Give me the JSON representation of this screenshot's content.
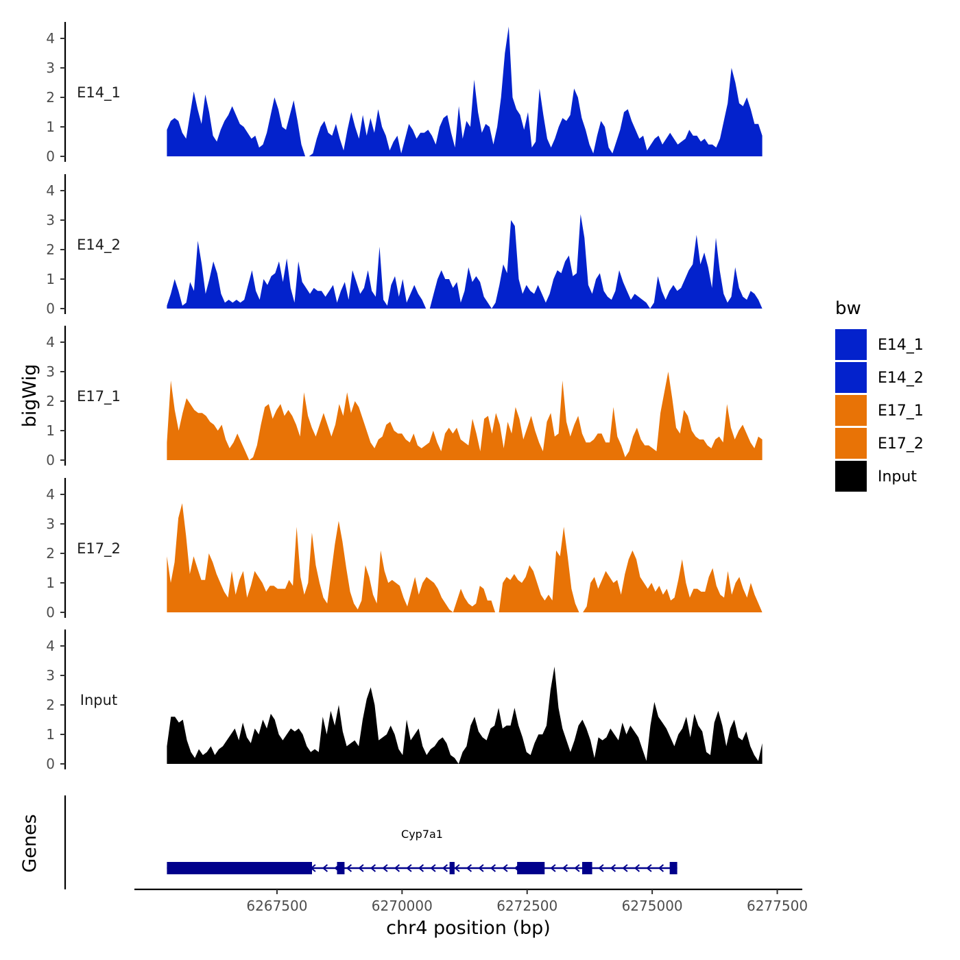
{
  "chart_data": {
    "type": "area",
    "ylabel": "bigWig",
    "xlabel": "chr4 position (bp)",
    "xlim": [
      6264650,
      6278000
    ],
    "ylim": [
      0,
      4.5
    ],
    "y_ticks": [
      "0",
      "1",
      "2",
      "3",
      "4"
    ],
    "x_ticks": [
      "6267500",
      "6270000",
      "6272500",
      "6275000",
      "6277500"
    ],
    "genes_label": "Genes",
    "legend": {
      "title": "bw",
      "entries": [
        {
          "label": "E14_1",
          "color": "#0322CC"
        },
        {
          "label": "E14_2",
          "color": "#0322CC"
        },
        {
          "label": "E17_1",
          "color": "#E87306"
        },
        {
          "label": "E17_2",
          "color": "#E87306"
        },
        {
          "label": "Input",
          "color": "#000000"
        }
      ]
    },
    "series": [
      {
        "name": "E14_1",
        "color": "#0322CC",
        "x_start": 6265300,
        "x_end": 6277200,
        "values": [
          0.9,
          1.2,
          1.3,
          1.2,
          0.8,
          0.6,
          1.4,
          2.2,
          1.6,
          1.1,
          2.1,
          1.5,
          0.7,
          0.5,
          0.9,
          1.2,
          1.4,
          1.7,
          1.4,
          1.1,
          1.0,
          0.8,
          0.6,
          0.7,
          0.3,
          0.4,
          0.8,
          1.4,
          2.0,
          1.6,
          1.0,
          0.9,
          1.4,
          1.9,
          1.2,
          0.4,
          0.0,
          0.0,
          0.1,
          0.6,
          1.0,
          1.2,
          0.8,
          0.7,
          1.1,
          0.6,
          0.2,
          0.9,
          1.5,
          1.0,
          0.6,
          1.4,
          0.7,
          1.3,
          0.8,
          1.6,
          1.0,
          0.7,
          0.2,
          0.5,
          0.7,
          0.1,
          0.6,
          1.1,
          0.9,
          0.6,
          0.8,
          0.8,
          0.9,
          0.7,
          0.4,
          1.0,
          1.3,
          1.4,
          0.8,
          0.3,
          1.7,
          0.6,
          1.2,
          1.0,
          2.6,
          1.5,
          0.8,
          1.1,
          1.0,
          0.4,
          1.0,
          2.0,
          3.5,
          4.4,
          2.0,
          1.6,
          1.4,
          0.9,
          1.5,
          0.3,
          0.5,
          2.3,
          1.4,
          0.6,
          0.3,
          0.6,
          1.0,
          1.3,
          1.2,
          1.4,
          2.3,
          2.0,
          1.3,
          0.9,
          0.4,
          0.1,
          0.7,
          1.2,
          1.0,
          0.3,
          0.1,
          0.5,
          0.9,
          1.5,
          1.6,
          1.2,
          0.9,
          0.6,
          0.7,
          0.2,
          0.4,
          0.6,
          0.7,
          0.4,
          0.6,
          0.8,
          0.6,
          0.4,
          0.5,
          0.6,
          0.9,
          0.7,
          0.7,
          0.5,
          0.6,
          0.4,
          0.4,
          0.3,
          0.6,
          1.2,
          1.8,
          3.0,
          2.5,
          1.8,
          1.7,
          2.0,
          1.6,
          1.1,
          1.1,
          0.7
        ]
      },
      {
        "name": "E14_2",
        "color": "#0322CC",
        "x_start": 6265300,
        "x_end": 6277200,
        "values": [
          0.1,
          0.5,
          1.0,
          0.6,
          0.1,
          0.2,
          0.9,
          0.6,
          2.3,
          1.5,
          0.5,
          1.0,
          1.6,
          1.2,
          0.5,
          0.2,
          0.3,
          0.2,
          0.3,
          0.2,
          0.3,
          0.8,
          1.3,
          0.6,
          0.3,
          1.0,
          0.8,
          1.1,
          1.2,
          1.6,
          0.9,
          1.7,
          0.7,
          0.2,
          1.6,
          0.9,
          0.7,
          0.5,
          0.7,
          0.6,
          0.6,
          0.4,
          0.6,
          0.8,
          0.2,
          0.6,
          0.9,
          0.3,
          1.3,
          0.9,
          0.5,
          0.7,
          1.3,
          0.6,
          0.4,
          2.1,
          0.3,
          0.1,
          0.8,
          1.1,
          0.4,
          1.0,
          0.2,
          0.5,
          0.8,
          0.5,
          0.3,
          0.0,
          0.0,
          0.5,
          1.0,
          1.3,
          1.0,
          1.0,
          0.7,
          0.9,
          0.2,
          0.6,
          1.4,
          0.9,
          1.1,
          0.9,
          0.4,
          0.2,
          0.0,
          0.2,
          0.8,
          1.5,
          1.2,
          3.0,
          2.8,
          1.0,
          0.5,
          0.8,
          0.6,
          0.5,
          0.8,
          0.5,
          0.2,
          0.5,
          1.0,
          1.3,
          1.2,
          1.6,
          1.8,
          1.1,
          1.2,
          3.2,
          2.4,
          0.8,
          0.5,
          1.0,
          1.2,
          0.6,
          0.4,
          0.3,
          0.6,
          1.3,
          0.9,
          0.6,
          0.3,
          0.5,
          0.4,
          0.3,
          0.2,
          0.0,
          0.2,
          1.1,
          0.6,
          0.3,
          0.6,
          0.8,
          0.6,
          0.7,
          1.0,
          1.3,
          1.5,
          2.5,
          1.5,
          1.9,
          1.4,
          0.7,
          2.4,
          1.3,
          0.5,
          0.2,
          0.4,
          1.4,
          0.7,
          0.4,
          0.3,
          0.6,
          0.5,
          0.3,
          0.0
        ]
      },
      {
        "name": "E17_1",
        "color": "#E87306",
        "x_start": 6265300,
        "x_end": 6277200,
        "values": [
          0.6,
          2.7,
          1.7,
          1.0,
          1.6,
          2.1,
          1.9,
          1.7,
          1.6,
          1.6,
          1.5,
          1.3,
          1.2,
          1.0,
          1.2,
          0.7,
          0.4,
          0.6,
          0.9,
          0.6,
          0.3,
          0.0,
          0.1,
          0.5,
          1.2,
          1.8,
          1.9,
          1.4,
          1.7,
          1.9,
          1.5,
          1.7,
          1.5,
          1.2,
          0.8,
          2.3,
          1.5,
          1.1,
          0.8,
          1.2,
          1.6,
          1.2,
          0.8,
          1.2,
          1.9,
          1.5,
          2.3,
          1.6,
          2.0,
          1.8,
          1.4,
          1.0,
          0.6,
          0.4,
          0.7,
          0.8,
          1.2,
          1.3,
          1.0,
          0.9,
          0.9,
          0.7,
          0.6,
          0.9,
          0.5,
          0.4,
          0.5,
          0.6,
          1.0,
          0.6,
          0.3,
          0.9,
          1.1,
          0.9,
          1.1,
          0.7,
          0.6,
          0.5,
          1.4,
          0.9,
          0.3,
          1.4,
          1.5,
          0.9,
          1.6,
          1.2,
          0.4,
          1.3,
          0.9,
          1.8,
          1.4,
          0.7,
          1.1,
          1.5,
          1.0,
          0.6,
          0.3,
          1.3,
          1.6,
          0.8,
          0.9,
          2.7,
          1.3,
          0.8,
          1.2,
          1.5,
          0.9,
          0.6,
          0.6,
          0.7,
          0.9,
          0.9,
          0.6,
          0.6,
          1.8,
          0.8,
          0.5,
          0.1,
          0.3,
          0.8,
          1.1,
          0.7,
          0.5,
          0.5,
          0.4,
          0.3,
          1.6,
          2.3,
          3.0,
          2.1,
          1.1,
          0.9,
          1.7,
          1.5,
          1.0,
          0.8,
          0.7,
          0.7,
          0.5,
          0.4,
          0.7,
          0.8,
          0.6,
          1.9,
          1.1,
          0.7,
          1.0,
          1.2,
          0.9,
          0.6,
          0.4,
          0.8,
          0.7
        ]
      },
      {
        "name": "E17_2",
        "color": "#E87306",
        "x_start": 6265300,
        "x_end": 6277200,
        "values": [
          1.9,
          1.0,
          1.7,
          3.2,
          3.7,
          2.6,
          1.3,
          1.9,
          1.5,
          1.1,
          1.1,
          2.0,
          1.7,
          1.3,
          1.0,
          0.7,
          0.5,
          1.4,
          0.6,
          1.1,
          1.4,
          0.5,
          0.9,
          1.4,
          1.2,
          1.0,
          0.7,
          0.9,
          0.9,
          0.8,
          0.8,
          0.8,
          1.1,
          0.9,
          2.9,
          1.2,
          0.6,
          1.0,
          2.7,
          1.6,
          1.0,
          0.5,
          0.3,
          1.3,
          2.3,
          3.1,
          2.4,
          1.5,
          0.7,
          0.3,
          0.1,
          0.4,
          1.6,
          1.2,
          0.6,
          0.3,
          2.1,
          1.4,
          1.0,
          1.1,
          1.0,
          0.9,
          0.5,
          0.2,
          0.7,
          1.2,
          0.6,
          1.0,
          1.2,
          1.1,
          1.0,
          0.8,
          0.5,
          0.3,
          0.1,
          0.0,
          0.4,
          0.8,
          0.5,
          0.3,
          0.2,
          0.3,
          0.9,
          0.8,
          0.4,
          0.4,
          0.0,
          0.0,
          1.0,
          1.2,
          1.1,
          1.3,
          1.1,
          1.0,
          1.2,
          1.6,
          1.4,
          1.0,
          0.6,
          0.4,
          0.6,
          0.4,
          2.1,
          1.9,
          2.9,
          1.9,
          0.8,
          0.3,
          0.0,
          0.0,
          0.2,
          1.0,
          1.2,
          0.8,
          1.1,
          1.4,
          1.2,
          1.0,
          1.1,
          0.6,
          1.3,
          1.8,
          2.1,
          1.8,
          1.2,
          1.0,
          0.8,
          1.0,
          0.7,
          0.9,
          0.6,
          0.8,
          0.4,
          0.5,
          1.1,
          1.8,
          1.0,
          0.5,
          0.8,
          0.8,
          0.7,
          0.7,
          1.2,
          1.5,
          0.9,
          0.6,
          0.5,
          1.4,
          0.6,
          1.0,
          1.2,
          0.8,
          0.5,
          1.0,
          0.6,
          0.3,
          0.0
        ]
      },
      {
        "name": "Input",
        "color": "#000000",
        "x_start": 6265300,
        "x_end": 6277200,
        "values": [
          0.6,
          1.6,
          1.6,
          1.4,
          1.5,
          0.8,
          0.4,
          0.2,
          0.5,
          0.3,
          0.4,
          0.6,
          0.3,
          0.5,
          0.6,
          0.8,
          1.0,
          1.2,
          0.8,
          1.4,
          0.9,
          0.7,
          1.2,
          1.0,
          1.5,
          1.2,
          1.7,
          1.5,
          1.0,
          0.8,
          1.0,
          1.2,
          1.1,
          1.2,
          1.0,
          0.6,
          0.4,
          0.5,
          0.4,
          1.6,
          1.0,
          1.8,
          1.3,
          2.0,
          1.1,
          0.6,
          0.7,
          0.8,
          0.6,
          1.5,
          2.2,
          2.6,
          2.0,
          0.8,
          0.9,
          1.0,
          1.3,
          1.0,
          0.5,
          0.3,
          1.5,
          0.8,
          1.0,
          1.2,
          0.6,
          0.3,
          0.5,
          0.6,
          0.8,
          0.9,
          0.7,
          0.3,
          0.2,
          0.0,
          0.4,
          0.6,
          1.3,
          1.6,
          1.1,
          0.9,
          0.8,
          1.2,
          1.3,
          1.9,
          1.2,
          1.3,
          1.3,
          1.9,
          1.3,
          0.9,
          0.4,
          0.3,
          0.7,
          1.0,
          1.0,
          1.3,
          2.5,
          3.3,
          1.9,
          1.2,
          0.8,
          0.4,
          0.8,
          1.3,
          1.5,
          1.2,
          0.8,
          0.2,
          0.9,
          0.8,
          0.9,
          1.2,
          1.0,
          0.8,
          1.4,
          1.0,
          1.3,
          1.1,
          0.9,
          0.5,
          0.1,
          1.3,
          2.1,
          1.6,
          1.4,
          1.2,
          0.9,
          0.6,
          1.0,
          1.2,
          1.6,
          0.9,
          1.7,
          1.3,
          1.1,
          0.4,
          0.3,
          1.4,
          1.8,
          1.3,
          0.6,
          1.2,
          1.5,
          0.9,
          0.8,
          1.1,
          0.6,
          0.3,
          0.1,
          0.7
        ]
      }
    ],
    "gene": {
      "name": "Cyp7a1",
      "color": "#00008B",
      "strand": "-",
      "start": 6265300,
      "end": 6275500,
      "exons": [
        [
          6265300,
          6268200
        ],
        [
          6268700,
          6268850
        ],
        [
          6270950,
          6271050
        ],
        [
          6272300,
          6272850
        ],
        [
          6273600,
          6273800
        ],
        [
          6275350,
          6275500
        ]
      ]
    }
  }
}
